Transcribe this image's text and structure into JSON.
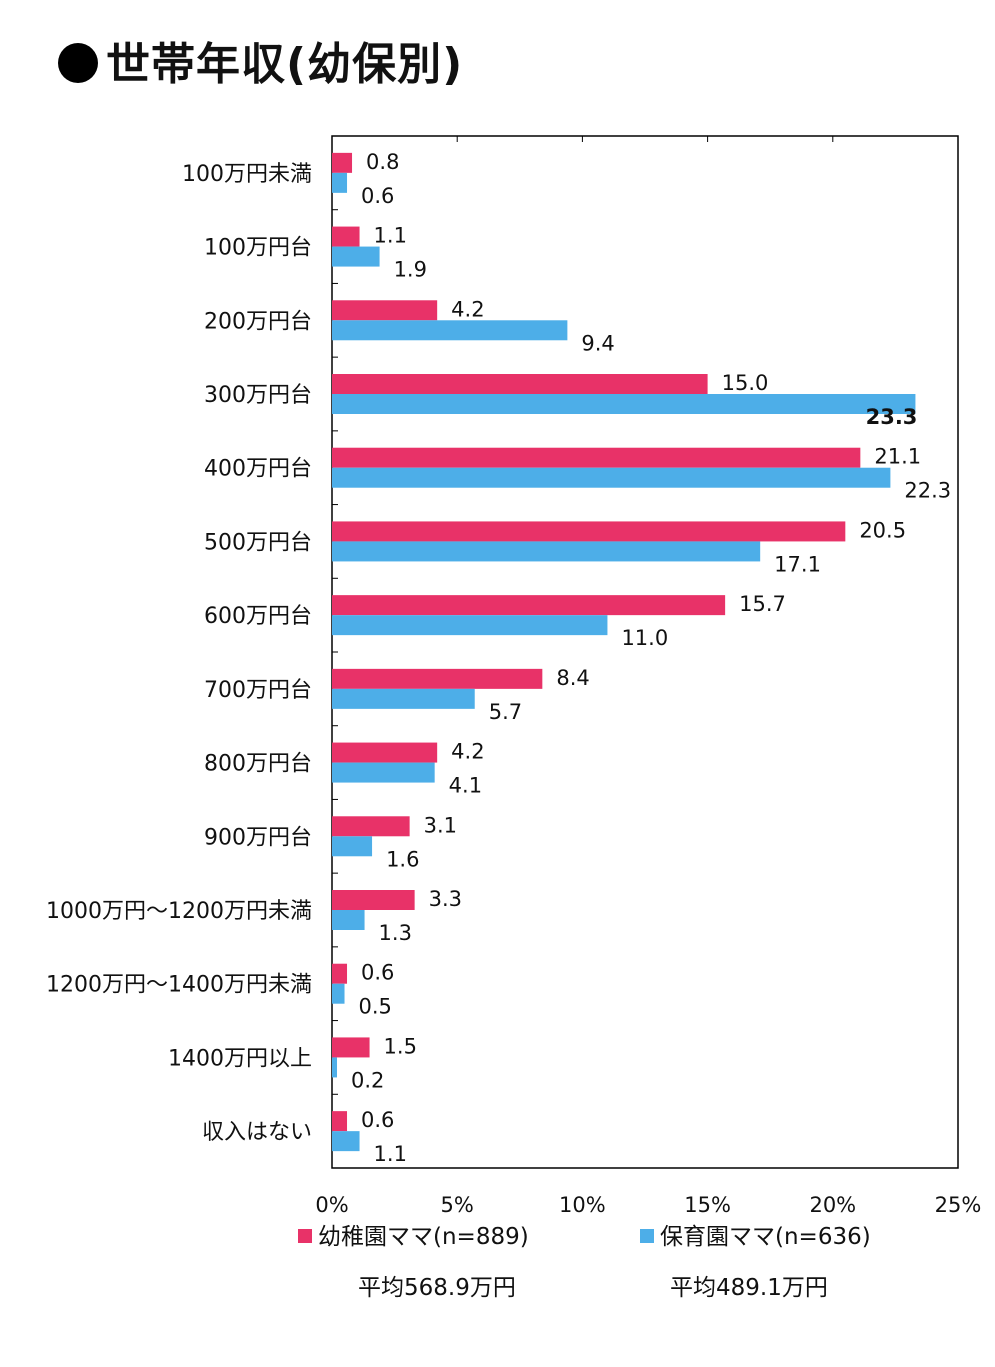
{
  "page": {
    "title": "世帯年収(幼保別)"
  },
  "chart_data": {
    "type": "bar",
    "orientation": "horizontal",
    "categories": [
      "100万円未満",
      "100万円台",
      "200万円台",
      "300万円台",
      "400万円台",
      "500万円台",
      "600万円台",
      "700万円台",
      "800万円台",
      "900万円台",
      "1000万円～1200万円未満",
      "1200万円～1400万円未満",
      "1400万円以上",
      "収入はない"
    ],
    "series": [
      {
        "name": "幼稚園ママ(n=889)",
        "color": "#e83268",
        "values": [
          0.8,
          1.1,
          4.2,
          15.0,
          21.1,
          20.5,
          15.7,
          8.4,
          4.2,
          3.1,
          3.3,
          0.6,
          1.5,
          0.6
        ],
        "labels": [
          "0.8",
          "1.1",
          "4.2",
          "15.0",
          "21.1",
          "20.5",
          "15.7",
          "8.4",
          "4.2",
          "3.1",
          "3.3",
          "0.6",
          "1.5",
          "0.6"
        ]
      },
      {
        "name": "保育園ママ(n=636)",
        "color": "#4daee8",
        "values": [
          0.6,
          1.9,
          9.4,
          23.3,
          22.3,
          17.1,
          11.0,
          5.7,
          4.1,
          1.6,
          1.3,
          0.5,
          0.2,
          1.1
        ],
        "labels": [
          "0.6",
          "1.9",
          "9.4",
          "23.3",
          "22.3",
          "17.1",
          "11.0",
          "5.7",
          "4.1",
          "1.6",
          "1.3",
          "0.5",
          "0.2",
          "1.1"
        ]
      }
    ],
    "highlight": {
      "series": 1,
      "index": 3
    },
    "xlim": [
      0,
      25
    ],
    "xticks": [
      "0%",
      "5%",
      "10%",
      "15%",
      "20%",
      "25%"
    ],
    "legend_position": "bottom",
    "averages": [
      "平均568.9万円",
      "平均489.1万円"
    ]
  }
}
